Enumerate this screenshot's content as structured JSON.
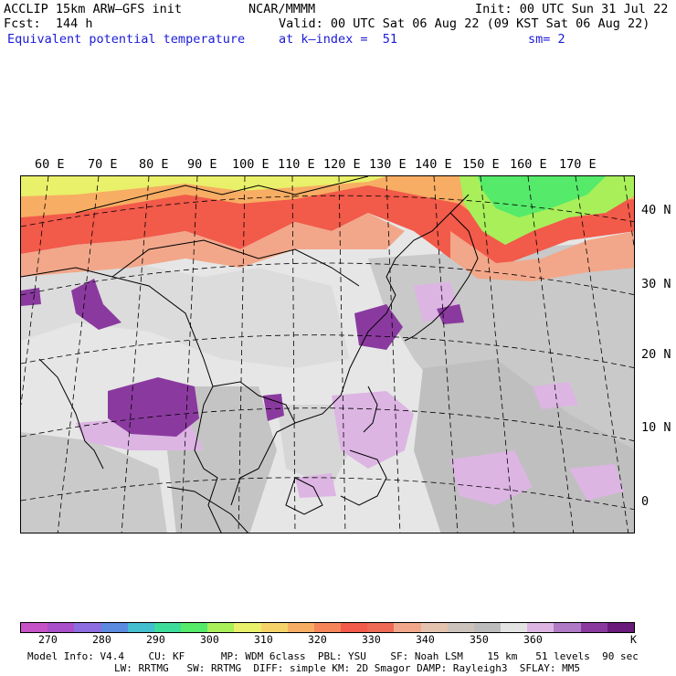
{
  "header": {
    "model": "ACCLIP 15km ARW–GFS init",
    "center": "NCAR/MMMM",
    "init": "Init: 00 UTC Sun 31 Jul 22",
    "fcst": "Fcst:  144 h",
    "valid": "Valid: 00 UTC Sat 06 Aug 22 (09 KST Sat 06 Aug 22)",
    "field": "Equivalent potential temperature",
    "level": "at k–index =  51",
    "smooth": "sm= 2"
  },
  "map": {
    "lon_labels": [
      "60 E",
      "70 E",
      "80 E",
      "90 E",
      "100 E",
      "110 E",
      "120 E",
      "130 E",
      "140 E",
      "150 E",
      "160 E",
      "170 E"
    ],
    "lat_labels": [
      "40 N",
      "30 N",
      "20 N",
      "10 N",
      "0"
    ]
  },
  "colorbar": {
    "colors": [
      "#c653c6",
      "#a94fc9",
      "#8c6ce0",
      "#5b8ae0",
      "#43bfcf",
      "#3ddc9a",
      "#55ea6a",
      "#a8ef5a",
      "#e9f06a",
      "#f5d36a",
      "#f7ad63",
      "#f6855a",
      "#f25a4a",
      "#ee6a55",
      "#f2a78a",
      "#e4c2ad",
      "#cdc3bd",
      "#bcbcbc",
      "#e3e3e3",
      "#dcb5e3",
      "#b07ac6",
      "#8a3a9f",
      "#6a1a7a"
    ],
    "labels": [
      "270",
      "280",
      "290",
      "300",
      "310",
      "320",
      "330",
      "340",
      "350",
      "360",
      "K"
    ],
    "unit": "K"
  },
  "footer": {
    "line1": "Model Info: V4.4    CU: KF      MP: WDM 6class  PBL: YSU    SF: Noah LSM    15 km   51 levels  90 sec",
    "line2": "LW: RRTMG   SW: RRTMG  DIFF: simple KM: 2D Smagor DAMP: Rayleigh3  SFLAY: MM5"
  }
}
